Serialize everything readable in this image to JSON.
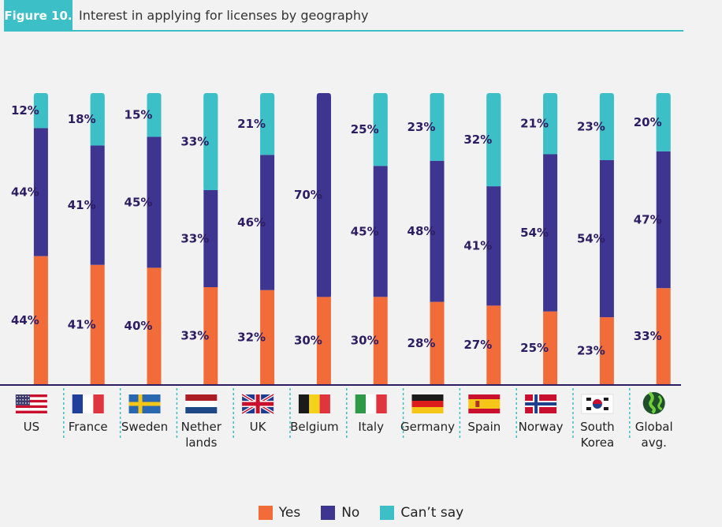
{
  "header": {
    "figure_label": "Figure 10.",
    "title": "Interest in applying for licenses by geography"
  },
  "colors": {
    "yes": "#f26c3a",
    "no": "#3d3590",
    "cant_say": "#3cbfc7",
    "accent": "#3cbfc7",
    "text": "#2d1d63"
  },
  "chart_data": {
    "type": "bar",
    "stacked": true,
    "orientation": "vertical",
    "categories": [
      "US",
      "France",
      "Sweden",
      "Nether\nlands",
      "UK",
      "Belgium",
      "Italy",
      "Germany",
      "Spain",
      "Norway",
      "South\nKorea",
      "Global\navg."
    ],
    "flags": [
      "us-flag",
      "france-flag",
      "sweden-flag",
      "netherlands-flag",
      "uk-flag",
      "belgium-flag",
      "italy-flag",
      "germany-flag",
      "spain-flag",
      "norway-flag",
      "south-korea-flag",
      "globe-icon"
    ],
    "series": [
      {
        "name": "Yes",
        "color": "#f26c3a",
        "values": [
          44,
          41,
          40,
          33,
          32,
          30,
          30,
          28,
          27,
          25,
          23,
          33
        ],
        "labels": [
          "44%",
          "41%",
          "40%",
          "33%",
          "32%",
          "30%",
          "30%",
          "28%",
          "27%",
          "25%",
          "23%",
          "33%"
        ]
      },
      {
        "name": "No",
        "color": "#3d3590",
        "values": [
          44,
          41,
          45,
          33,
          46,
          70,
          45,
          48,
          41,
          54,
          54,
          47
        ],
        "labels": [
          "44%",
          "41%",
          "45%",
          "33%",
          "46%",
          "70%",
          "45%",
          "48%",
          "41%",
          "54%",
          "54%",
          "47%"
        ]
      },
      {
        "name": "Can’t say",
        "color": "#3cbfc7",
        "values": [
          12,
          18,
          15,
          33,
          21,
          0,
          25,
          23,
          32,
          21,
          23,
          20
        ],
        "labels": [
          "12%",
          "18%",
          "15%",
          "33%",
          "21%",
          "",
          "25%",
          "23%",
          "32%",
          "21%",
          "23%",
          "20%"
        ]
      }
    ],
    "ylim": [
      0,
      100
    ],
    "grid": false,
    "legend_position": "bottom-center"
  },
  "legend": {
    "yes_label": "Yes",
    "no_label": "No",
    "cant_say_label": "Can’t say"
  }
}
